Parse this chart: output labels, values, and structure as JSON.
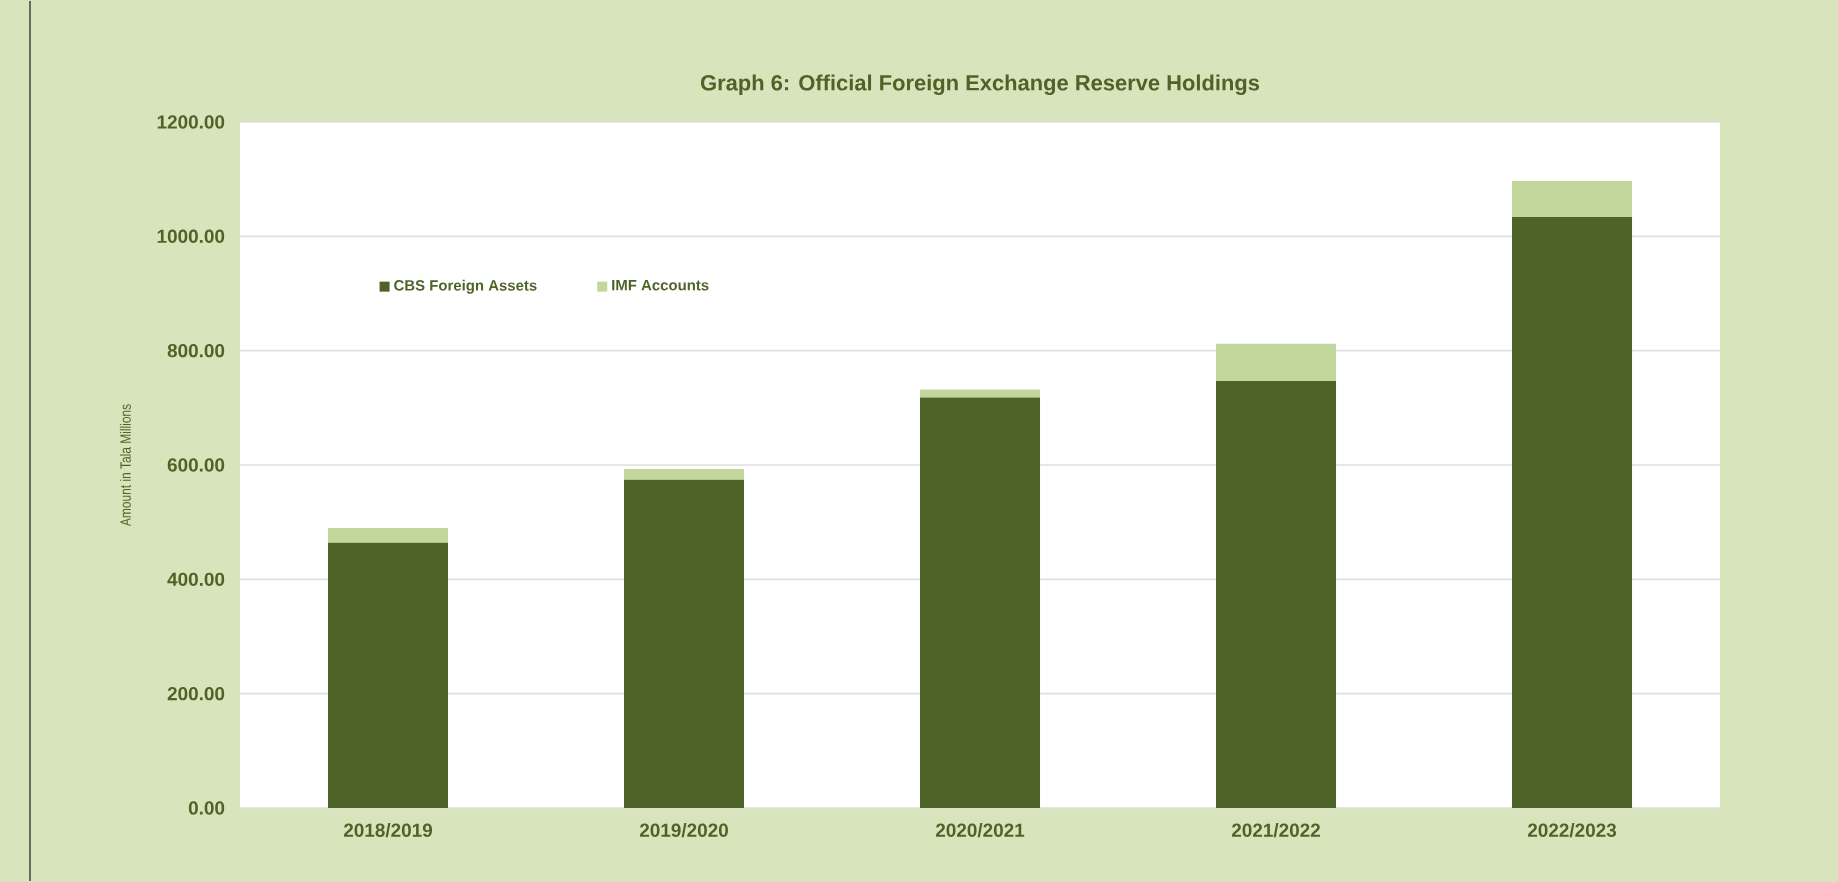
{
  "chart_data": {
    "type": "bar",
    "stacked": true,
    "title": "Graph 6:  Official Foreign Exchange Reserve Holdings",
    "ylabel": "Amount in Tala Millions",
    "categories": [
      "2018/2019",
      "2019/2020",
      "2020/2021",
      "2021/2022",
      "2022/2023"
    ],
    "series": [
      {
        "name": "CBS Foreign Assets",
        "color": "#4f6228",
        "values": [
          464,
          574,
          718,
          747,
          1034
        ]
      },
      {
        "name": "IMF Accounts",
        "color": "#c3d69b",
        "values": [
          26,
          19,
          14,
          65,
          63
        ]
      }
    ],
    "ylim": [
      0,
      1200
    ],
    "yticks": [
      {
        "value": 0,
        "label": "0.00"
      },
      {
        "value": 200,
        "label": "200.00"
      },
      {
        "value": 400,
        "label": "400.00"
      },
      {
        "value": 600,
        "label": "600.00"
      },
      {
        "value": 800,
        "label": "800.00"
      },
      {
        "value": 1000,
        "label": "1000.00"
      },
      {
        "value": 1200,
        "label": "1200.00"
      }
    ],
    "grid": "y",
    "legend": "top left"
  }
}
